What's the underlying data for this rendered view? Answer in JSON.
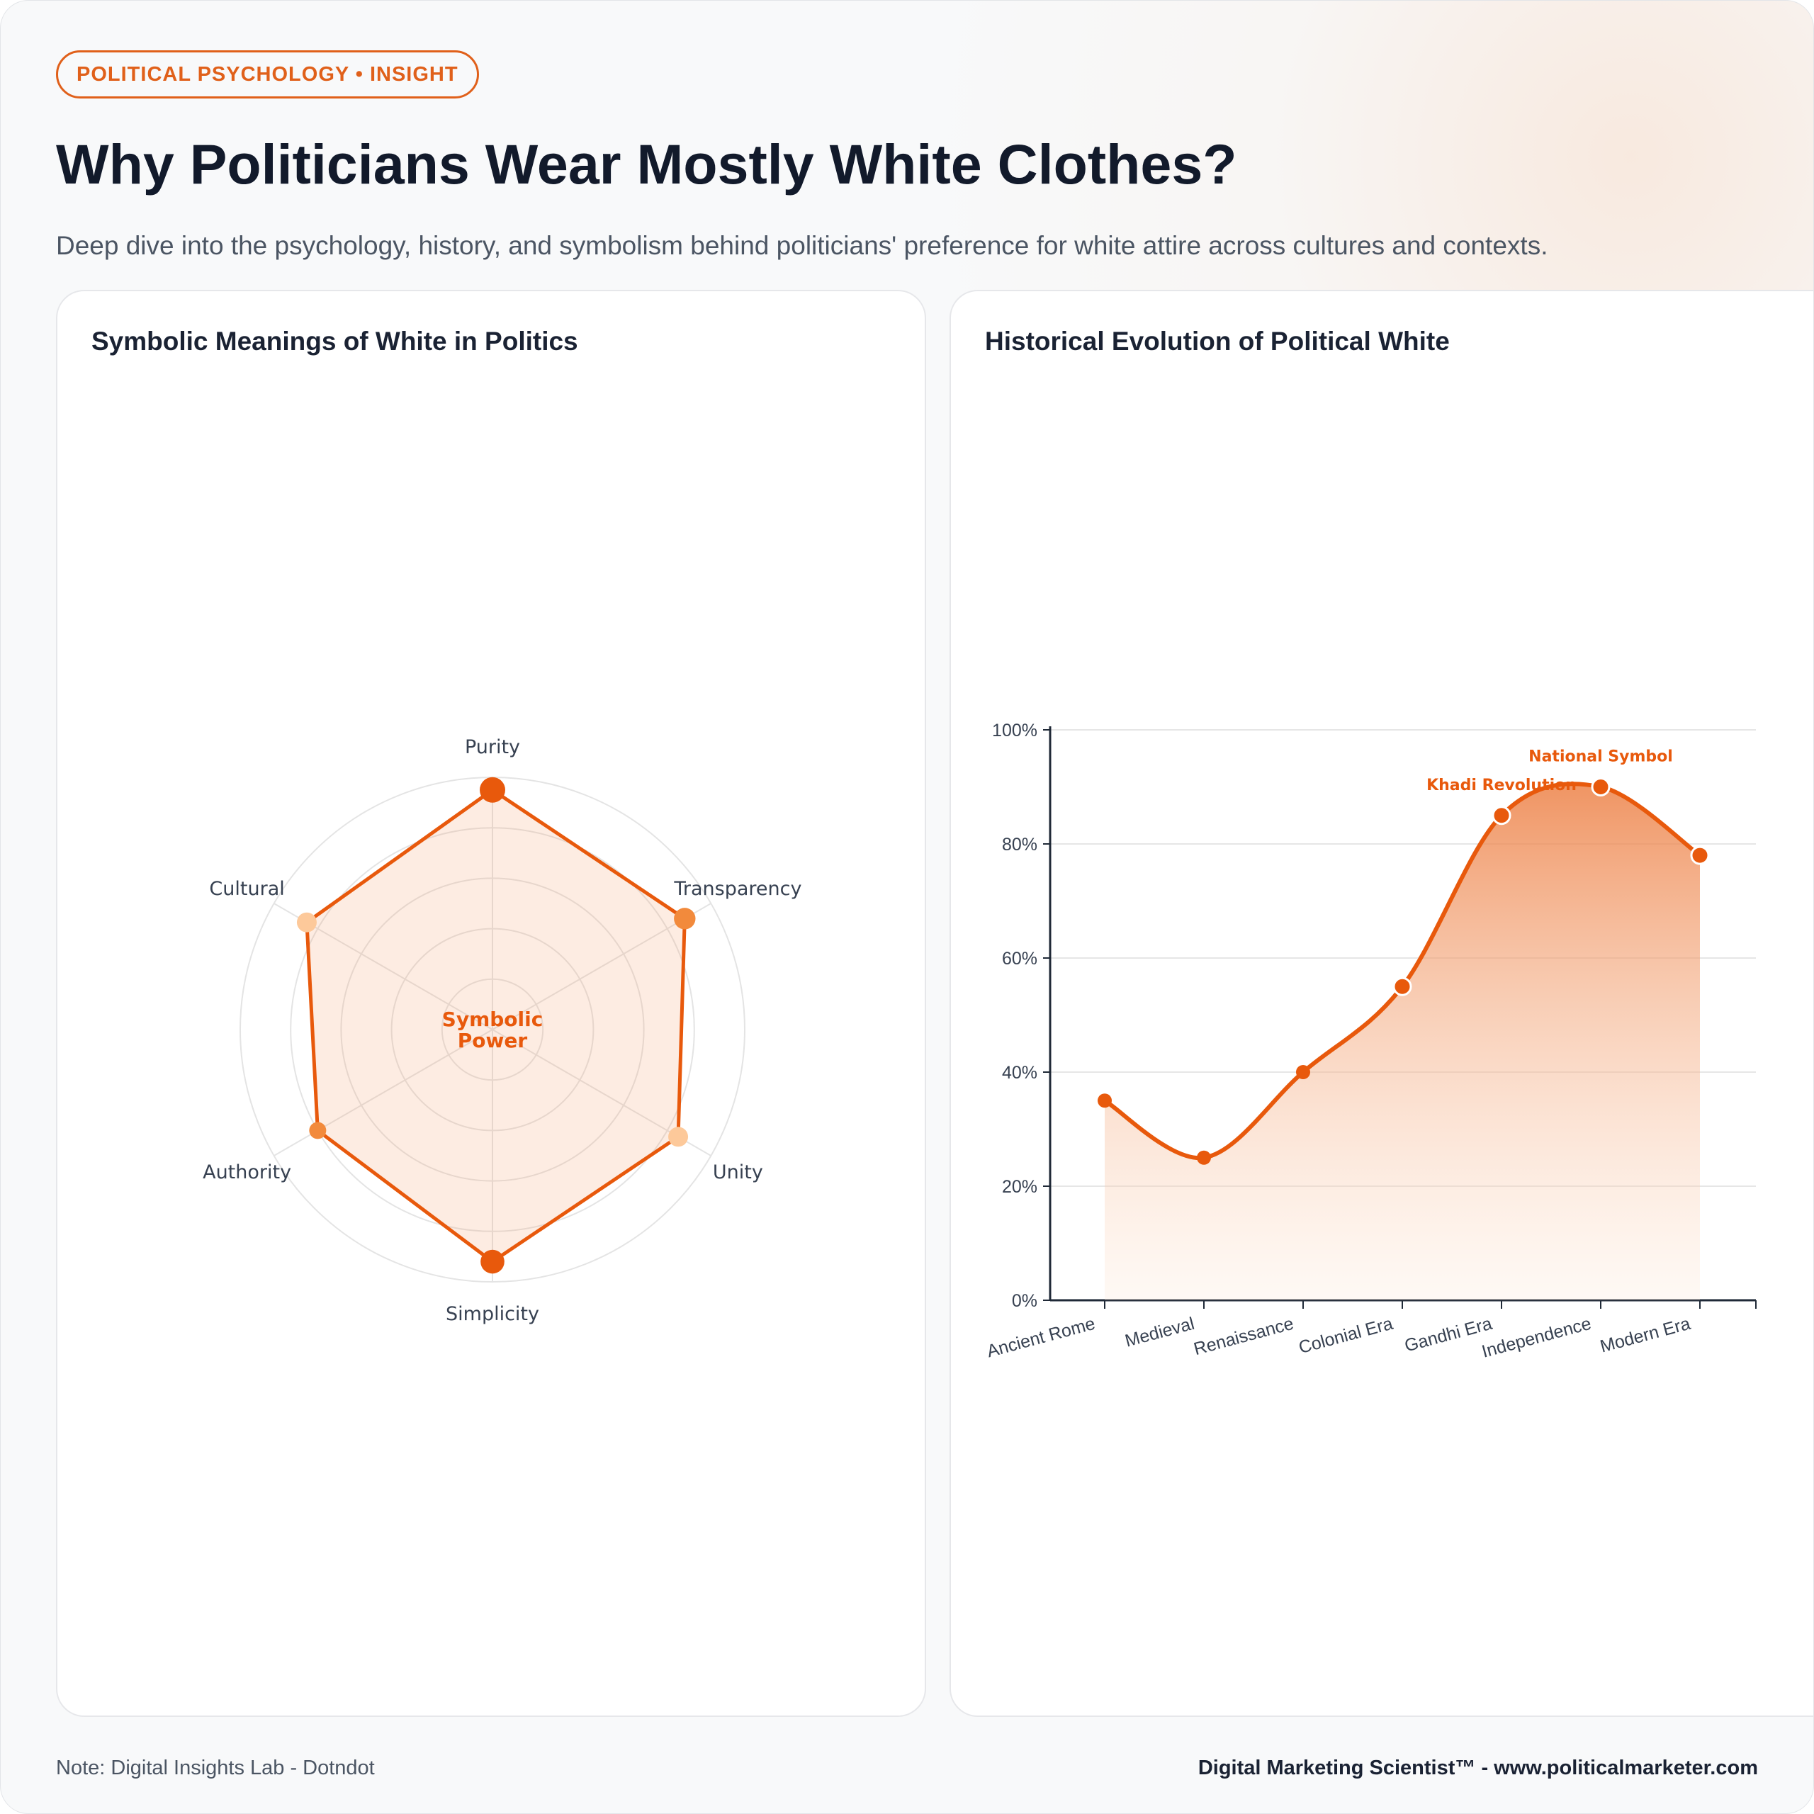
{
  "header": {
    "badge": "POLITICAL PSYCHOLOGY • INSIGHT",
    "title": "Why Politicians Wear Mostly White Clothes?",
    "subtitle": "Deep dive into the psychology, history, and symbolism behind politicians' preference for white attire across cultures and contexts."
  },
  "colors": {
    "accent": "#e8590c",
    "grid": "#e5e5e5",
    "text": "#374151"
  },
  "chart_data": [
    {
      "type": "radar",
      "title": "Symbolic Meanings of White in Politics",
      "center_label": [
        "Symbolic",
        "Power"
      ],
      "categories": [
        "Purity",
        "Transparency",
        "Unity",
        "Simplicity",
        "Authority",
        "Cultural"
      ],
      "values": [
        95,
        88,
        85,
        92,
        80,
        85
      ],
      "point_colors": [
        "#e8590c",
        "#f28a3c",
        "#fdc99a",
        "#e8590c",
        "#f28a3c",
        "#fdc99a"
      ],
      "range": [
        0,
        100
      ],
      "rings": 5
    },
    {
      "type": "area",
      "title": "Historical Evolution of Political White",
      "categories": [
        "Ancient Rome",
        "Medieval",
        "Renaissance",
        "Colonial Era",
        "Gandhi Era",
        "Independence",
        "Modern Era"
      ],
      "values": [
        35,
        25,
        40,
        55,
        85,
        90,
        78
      ],
      "ylim": [
        0,
        100
      ],
      "yticks": [
        "0%",
        "20%",
        "40%",
        "60%",
        "80%",
        "100%"
      ],
      "annotations": [
        {
          "category": "Gandhi Era",
          "text": "Khadi Revolution"
        },
        {
          "category": "Independence",
          "text": "National Symbol"
        }
      ],
      "grid": true
    }
  ],
  "footer": {
    "note": "Note: Digital Insights Lab - Dotndot",
    "credit": "Digital Marketing Scientist™ - www.politicalmarketer.com"
  }
}
